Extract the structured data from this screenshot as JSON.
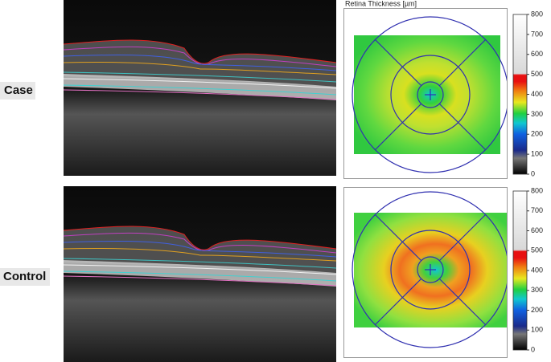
{
  "panels": [
    {
      "label": "Case",
      "map_title": "Retina Thickness [µm]",
      "colorbar": {
        "lim": [
          0,
          800
        ],
        "ticks": [
          0,
          100,
          200,
          300,
          400,
          500,
          600,
          700,
          800
        ]
      }
    },
    {
      "label": "Control",
      "colorbar": {
        "lim": [
          0,
          800
        ],
        "ticks": [
          0,
          100,
          200,
          300,
          400,
          500,
          600,
          700,
          800
        ]
      }
    }
  ]
}
